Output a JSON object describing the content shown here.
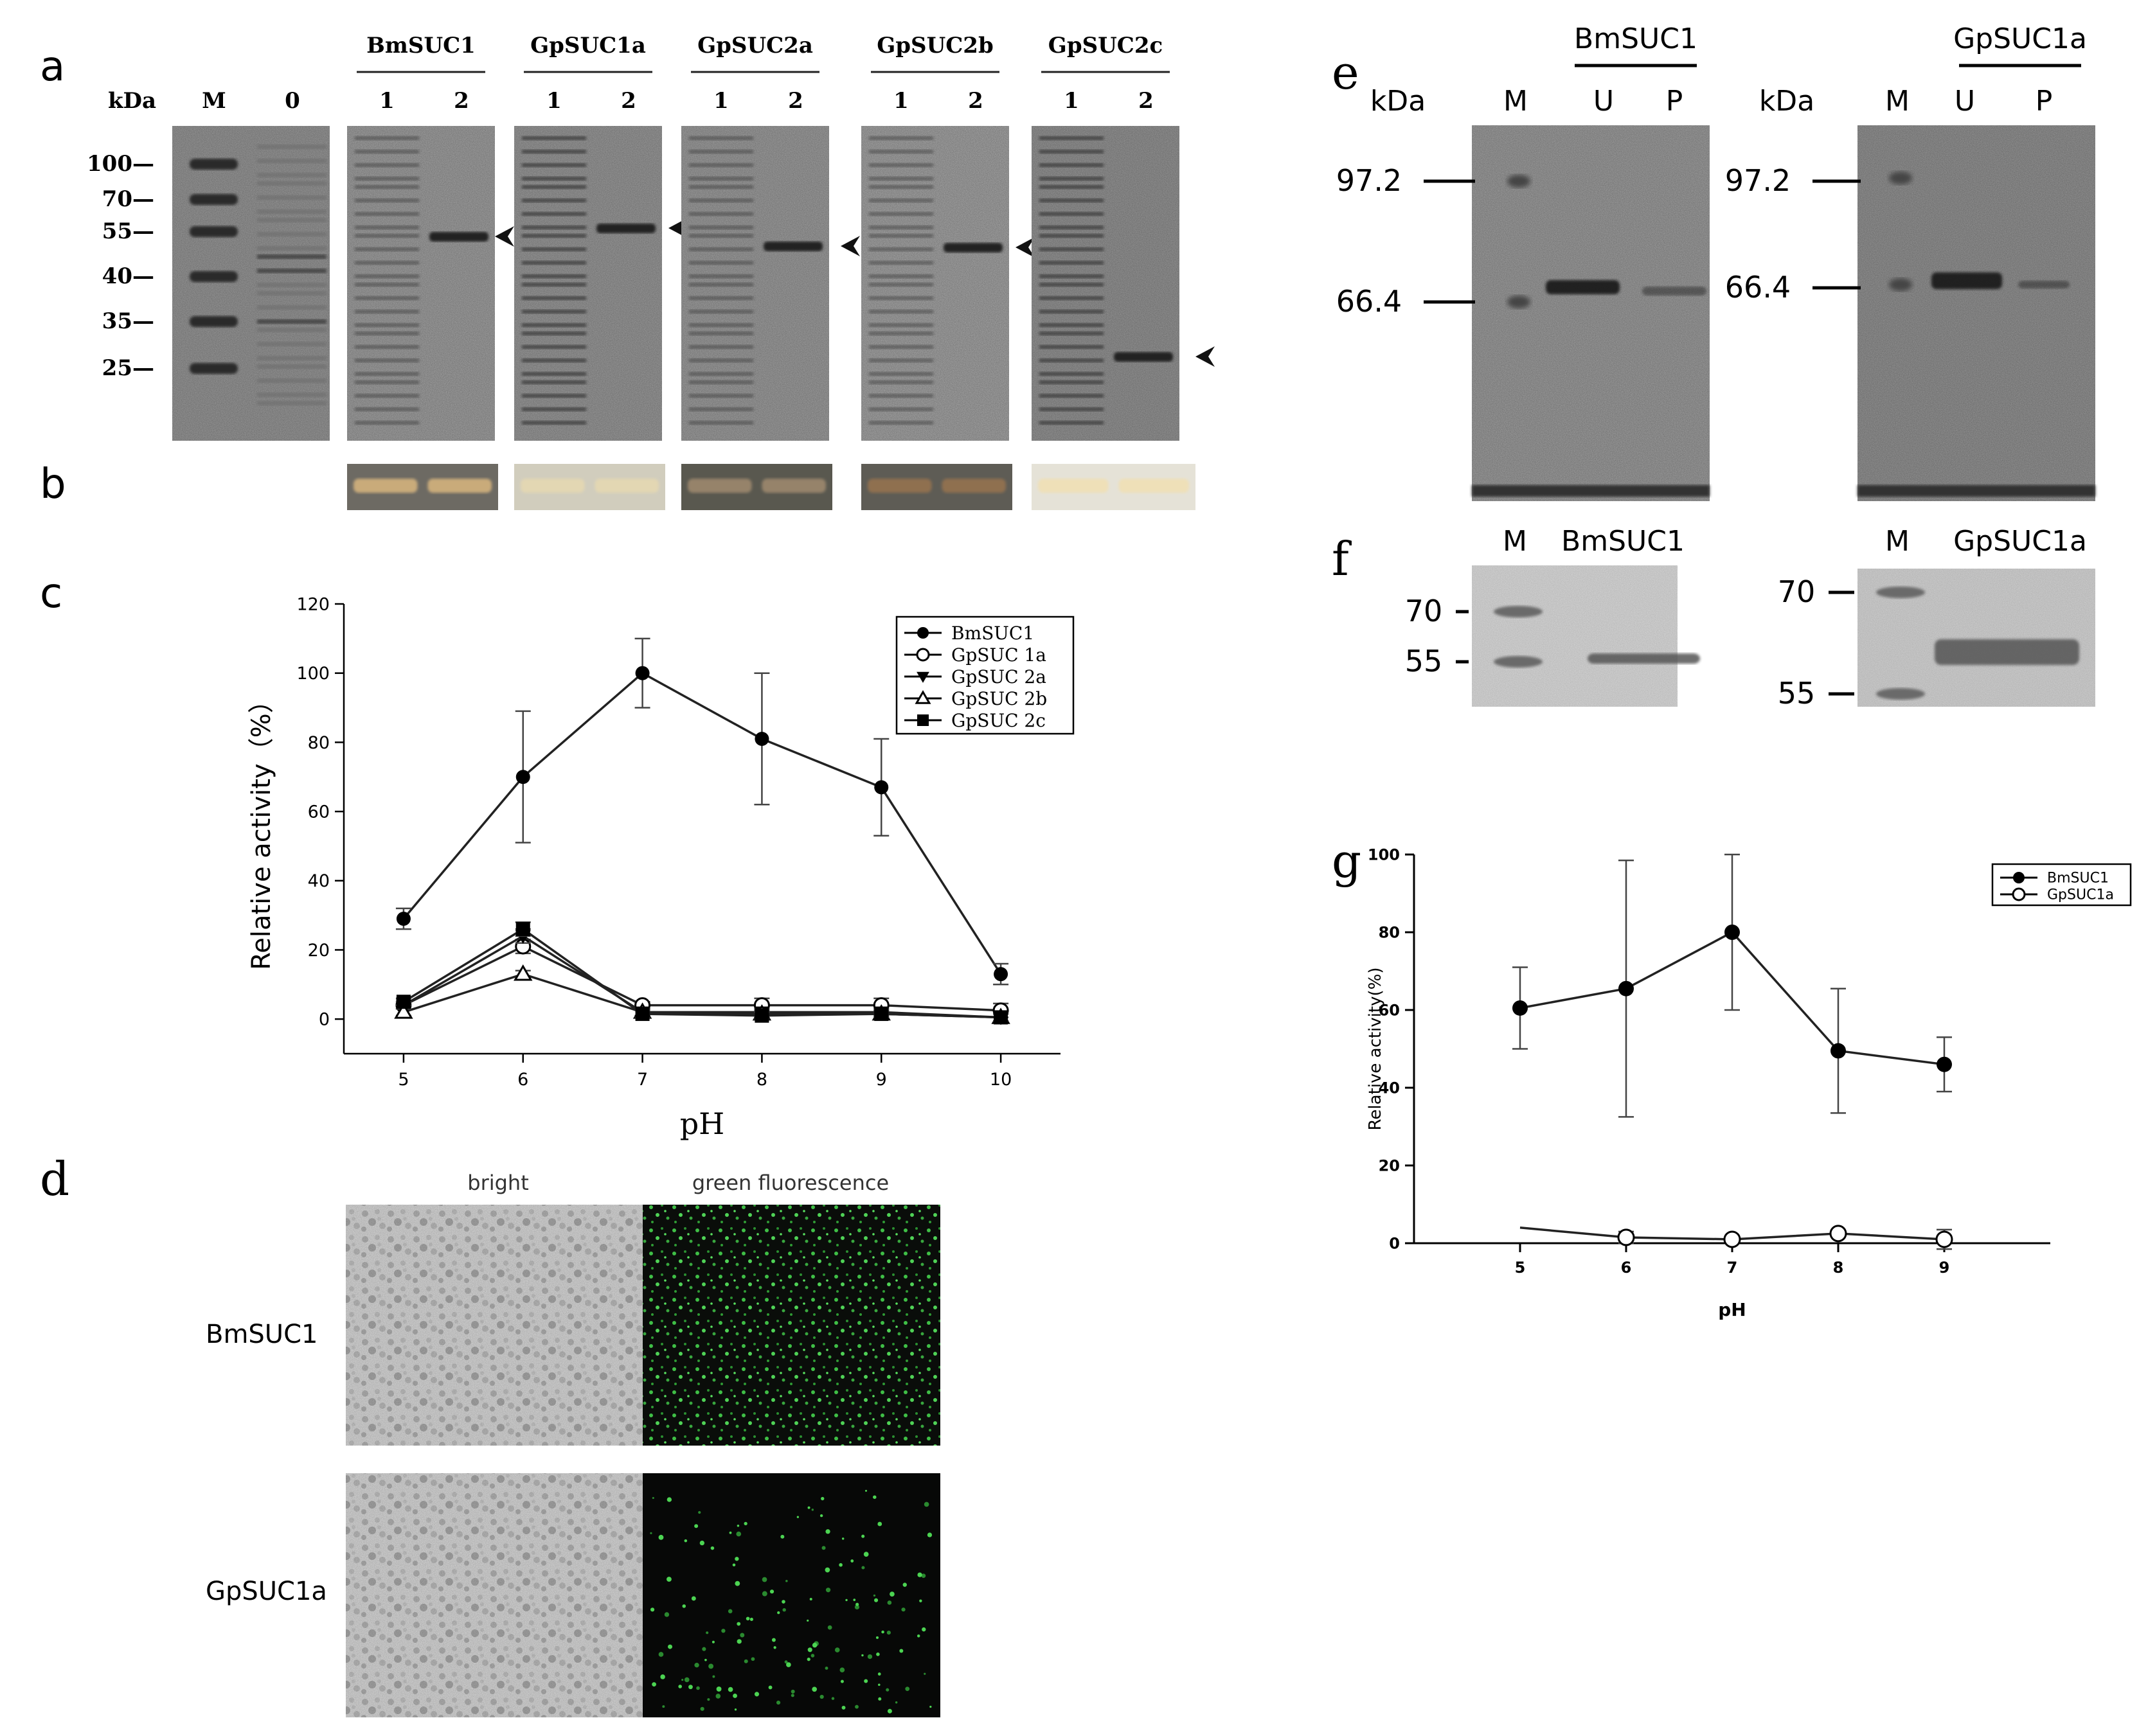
{
  "panel_letters": {
    "a": "a",
    "b": "b",
    "c": "c",
    "d": "d",
    "e": "e",
    "f": "f",
    "g": "g"
  },
  "gel_a": {
    "kda_label": "kDa",
    "marker_label": "M",
    "lane0_label": "0",
    "markers": [
      {
        "label": "100—",
        "kda": 100
      },
      {
        "label": "70—",
        "kda": 70
      },
      {
        "label": "55—",
        "kda": 55
      },
      {
        "label": "40—",
        "kda": 40
      },
      {
        "label": "35—",
        "kda": 35
      },
      {
        "label": "25—",
        "kda": 25
      }
    ],
    "lane_labels": [
      "1",
      "2"
    ],
    "groups": [
      {
        "name": "BmSUC1"
      },
      {
        "name": "GpSUC1a"
      },
      {
        "name": "GpSUC2a"
      },
      {
        "name": "GpSUC2b"
      },
      {
        "name": "GpSUC2c"
      }
    ]
  },
  "panel_d": {
    "col_labels": [
      "bright",
      "green fluorescence"
    ],
    "row_labels": [
      "BmSUC1",
      "GpSUC1a"
    ]
  },
  "gel_e": [
    {
      "title": "BmSUC1",
      "kda_label": "kDa",
      "lanes": [
        "M",
        "U",
        "P"
      ],
      "markers": [
        {
          "label": "97.2",
          "kda": 97.2
        },
        {
          "label": "66.4",
          "kda": 66.4
        }
      ]
    },
    {
      "title": "GpSUC1a",
      "kda_label": "kDa",
      "lanes": [
        "M",
        "U",
        "P"
      ],
      "markers": [
        {
          "label": "97.2",
          "kda": 97.2
        },
        {
          "label": "66.4",
          "kda": 66.4
        }
      ]
    }
  ],
  "gel_f": [
    {
      "lanes": [
        "M",
        "BmSUC1"
      ],
      "markers": [
        {
          "label": "70",
          "kda": 70
        },
        {
          "label": "55",
          "kda": 55
        }
      ]
    },
    {
      "lanes": [
        "M",
        "GpSUC1a"
      ],
      "markers": [
        {
          "label": "70",
          "kda": 70
        },
        {
          "label": "55",
          "kda": 55
        }
      ]
    }
  ],
  "chart_data": [
    {
      "panel": "c",
      "type": "line",
      "title": "",
      "xlabel": "pH",
      "ylabel": "Relative activity（%）",
      "x": [
        5,
        6,
        7,
        8,
        9,
        10
      ],
      "xlim": [
        4.5,
        10.5
      ],
      "ylim": [
        -10,
        120
      ],
      "yticks": [
        0,
        20,
        40,
        60,
        80,
        100,
        120
      ],
      "grid": false,
      "legend": "top-right",
      "series": [
        {
          "name": "BmSUC1",
          "marker": "filled-circle",
          "values": [
            29,
            70,
            100,
            81,
            67,
            13
          ],
          "errors": [
            3,
            19,
            10,
            19,
            14,
            3
          ]
        },
        {
          "name": "GpSUC 1a",
          "marker": "open-circle",
          "values": [
            4,
            21,
            4,
            4,
            4,
            2.5
          ],
          "errors": [
            1,
            2,
            1,
            2,
            2,
            2
          ]
        },
        {
          "name": "GpSUC 2a",
          "marker": "filled-triangle-down",
          "values": [
            4,
            24,
            2,
            2,
            2,
            0.5
          ],
          "errors": [
            1,
            2,
            1,
            1,
            1,
            1
          ]
        },
        {
          "name": "GpSUC 2b",
          "marker": "open-triangle-up",
          "values": [
            2,
            13,
            2,
            1.5,
            1.5,
            0.5
          ],
          "errors": [
            1,
            1,
            1,
            1,
            1,
            1
          ]
        },
        {
          "name": "GpSUC 2c",
          "marker": "filled-square",
          "values": [
            5,
            26,
            1.5,
            1,
            1.5,
            0.5
          ],
          "errors": [
            1,
            2,
            1,
            1,
            1,
            1
          ]
        }
      ]
    },
    {
      "panel": "g",
      "type": "line",
      "title": "",
      "xlabel": "pH",
      "ylabel": "Relative activity(%)",
      "x": [
        5,
        6,
        7,
        8,
        9
      ],
      "xlim": [
        4,
        10
      ],
      "ylim": [
        0,
        100
      ],
      "yticks": [
        0,
        20,
        40,
        60,
        80,
        100
      ],
      "grid": false,
      "legend": "top-right",
      "series": [
        {
          "name": "BmSUC1",
          "marker": "filled-circle",
          "values": [
            60.5,
            65.5,
            80,
            49.5,
            46
          ],
          "errors": [
            10.5,
            33,
            20,
            16,
            7
          ]
        },
        {
          "name": "GpSUC1a",
          "marker": "open-circle",
          "values": [
            4,
            1.5,
            1,
            2.5,
            1
          ],
          "errors": [
            0,
            1.5,
            0,
            0,
            2.5
          ]
        }
      ]
    }
  ]
}
